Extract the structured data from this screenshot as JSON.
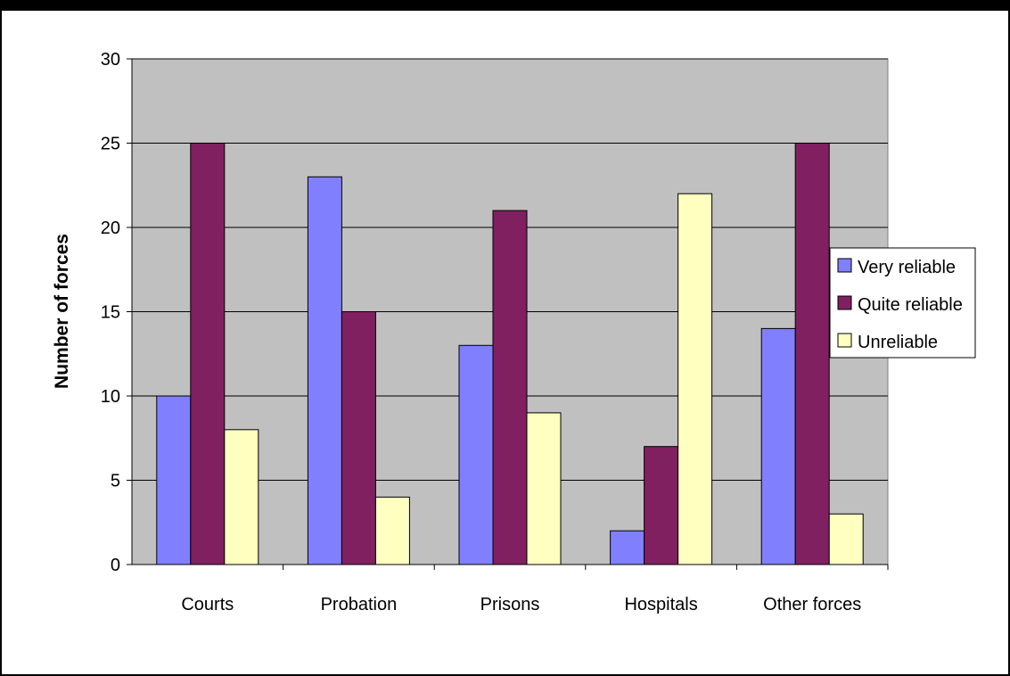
{
  "chart_data": {
    "type": "bar",
    "title": "",
    "xlabel": "",
    "ylabel": "Number of forces",
    "categories": [
      "Courts",
      "Probation",
      "Prisons",
      "Hospitals",
      "Other forces"
    ],
    "series": [
      {
        "name": "Very reliable",
        "values": [
          10,
          23,
          13,
          2,
          14
        ],
        "color": "#8080ff"
      },
      {
        "name": "Quite reliable",
        "values": [
          25,
          15,
          21,
          7,
          25
        ],
        "color": "#802060"
      },
      {
        "name": "Unreliable",
        "values": [
          8,
          4,
          9,
          22,
          3
        ],
        "color": "#ffffc0"
      }
    ],
    "ylim": [
      0,
      30
    ],
    "yticks": [
      0,
      5,
      10,
      15,
      20,
      25,
      30
    ],
    "grid": true,
    "plot_background": "#c0c0c0",
    "legend_position": "right"
  }
}
